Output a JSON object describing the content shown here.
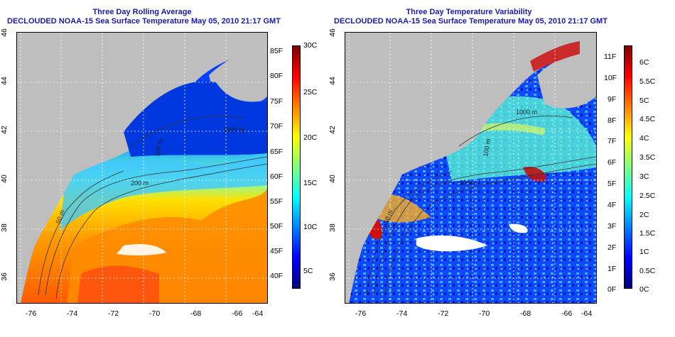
{
  "panels": [
    {
      "id": "avg",
      "title_line1": "Three Day Rolling Average",
      "title_line2": "DECLOUDED NOAA-15 Sea Surface Temperature May 05, 2010 21:17 GMT",
      "x_ticks": [
        "-76",
        "-74",
        "-72",
        "-70",
        "-68",
        "-66",
        "-64"
      ],
      "y_ticks": [
        "36",
        "38",
        "40",
        "42",
        "44",
        "46"
      ],
      "contour_labels": [
        "200 m",
        "50 m",
        "1000 m",
        "100 m"
      ],
      "colorbar": {
        "right_labels": [
          "30C",
          "25C",
          "20C",
          "15C",
          "10C",
          "5C"
        ],
        "left_labels": [
          "85F",
          "80F",
          "75F",
          "70F",
          "65F",
          "60F",
          "55F",
          "50F",
          "45F",
          "40F"
        ],
        "colors": [
          "#00007f",
          "#0000ff",
          "#0080ff",
          "#00ffff",
          "#80ff80",
          "#ffff00",
          "#ff8000",
          "#ff0000",
          "#7f0000"
        ]
      }
    },
    {
      "id": "var",
      "title_line1": "Three Day Temperature Variability",
      "title_line2": "DECLOUDED NOAA-15 Sea Surface Temperature May 05, 2010 21:17 GMT",
      "x_ticks": [
        "-76",
        "-74",
        "-72",
        "-70",
        "-68",
        "-66",
        "-64"
      ],
      "y_ticks": [
        "36",
        "38",
        "40",
        "42",
        "44",
        "46"
      ],
      "contour_labels": [
        "200 m",
        "50 m",
        "1000 m",
        "100 m"
      ],
      "colorbar": {
        "right_labels": [
          "6C",
          "5.5C",
          "5C",
          "4.5C",
          "4C",
          "3.5C",
          "3C",
          "2.5C",
          "2C",
          "1.5C",
          "1C",
          "0.5C",
          "0C"
        ],
        "left_labels": [
          "11F",
          "10F",
          "9F",
          "8F",
          "7F",
          "6F",
          "5F",
          "4F",
          "3F",
          "2F",
          "1F",
          "0F"
        ],
        "colors": [
          "#00007f",
          "#0000ff",
          "#0080ff",
          "#00ffff",
          "#80ff80",
          "#ffff00",
          "#ff8000",
          "#ff0000",
          "#7f0000"
        ]
      }
    }
  ],
  "colors": {
    "title_blue": "#1a1aa8",
    "land_gray": "#bebebe",
    "gridline": "#ffffff",
    "contour": "#333333"
  }
}
